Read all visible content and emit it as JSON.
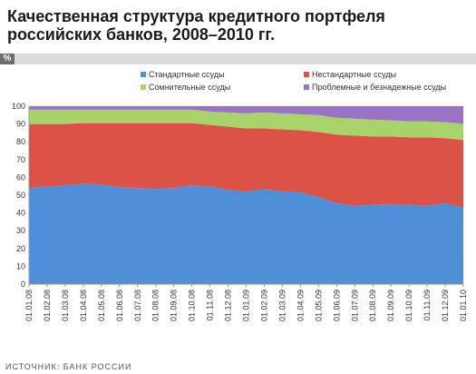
{
  "title_line1": "Качественная структура кредитного портфеля",
  "title_line2": "российских банков, 2008–2010 гг.",
  "unit_label": "%",
  "source": "ИСТОЧНИК: БАНК РОССИИ",
  "chart_data": {
    "type": "area",
    "stacked": true,
    "title": "Качественная структура кредитного портфеля российских банков, 2008–2010 гг.",
    "ylabel": "%",
    "xlabel": "",
    "ylim": [
      0,
      100
    ],
    "yticks": [
      0,
      10,
      20,
      30,
      40,
      50,
      60,
      70,
      80,
      90,
      100
    ],
    "grid": true,
    "legend_position": "top",
    "x": [
      "01.01.08",
      "01.02.08",
      "01.03.08",
      "01.04.08",
      "01.05.08",
      "01.06.08",
      "01.07.08",
      "01.08.08",
      "01.09.08",
      "01.10.08",
      "01.11.08",
      "01.12.08",
      "01.01.09",
      "01.02.09",
      "01.03.09",
      "01.04.09",
      "01.05.09",
      "01.06.09",
      "01.07.09",
      "01.08.09",
      "01.09.09",
      "01.10.09",
      "01.11.09",
      "01.12.09",
      "01.01.10"
    ],
    "series": [
      {
        "name": "Стандартные ссуды",
        "color": "#4f8fd8",
        "values": [
          54,
          55,
          55.5,
          56.5,
          56,
          54.5,
          54,
          53.5,
          54,
          55.5,
          55,
          53,
          52,
          53.5,
          52,
          51.5,
          49,
          45.5,
          44,
          44.5,
          45,
          44.5,
          44,
          45.5,
          43
        ]
      },
      {
        "name": "Нестандартные ссуды",
        "color": "#dc5246",
        "values": [
          36,
          35,
          34.5,
          34,
          34.5,
          36,
          36.5,
          37,
          36.5,
          35,
          34.5,
          35.5,
          35.5,
          34,
          35,
          35,
          36.5,
          38.5,
          39.5,
          38.5,
          38,
          38,
          38.5,
          36.5,
          38
        ]
      },
      {
        "name": "Сомнительные ссуды",
        "color": "#a8d36b",
        "values": [
          8,
          8,
          8,
          7.5,
          7.5,
          7.5,
          7.5,
          7.5,
          7.5,
          7.5,
          7.5,
          8,
          8.5,
          9,
          9,
          9,
          9.5,
          9.5,
          9.5,
          9.5,
          9,
          9,
          9,
          9,
          9
        ]
      },
      {
        "name": "Проблемные и безнадежные ссуды",
        "color": "#9b73c6",
        "values": [
          2,
          2,
          2,
          2,
          2,
          2,
          2,
          2,
          2,
          2,
          3,
          3.5,
          4,
          3.5,
          4,
          4.5,
          5,
          6.5,
          7,
          7.5,
          8,
          8.5,
          8.5,
          9,
          10
        ]
      }
    ]
  }
}
